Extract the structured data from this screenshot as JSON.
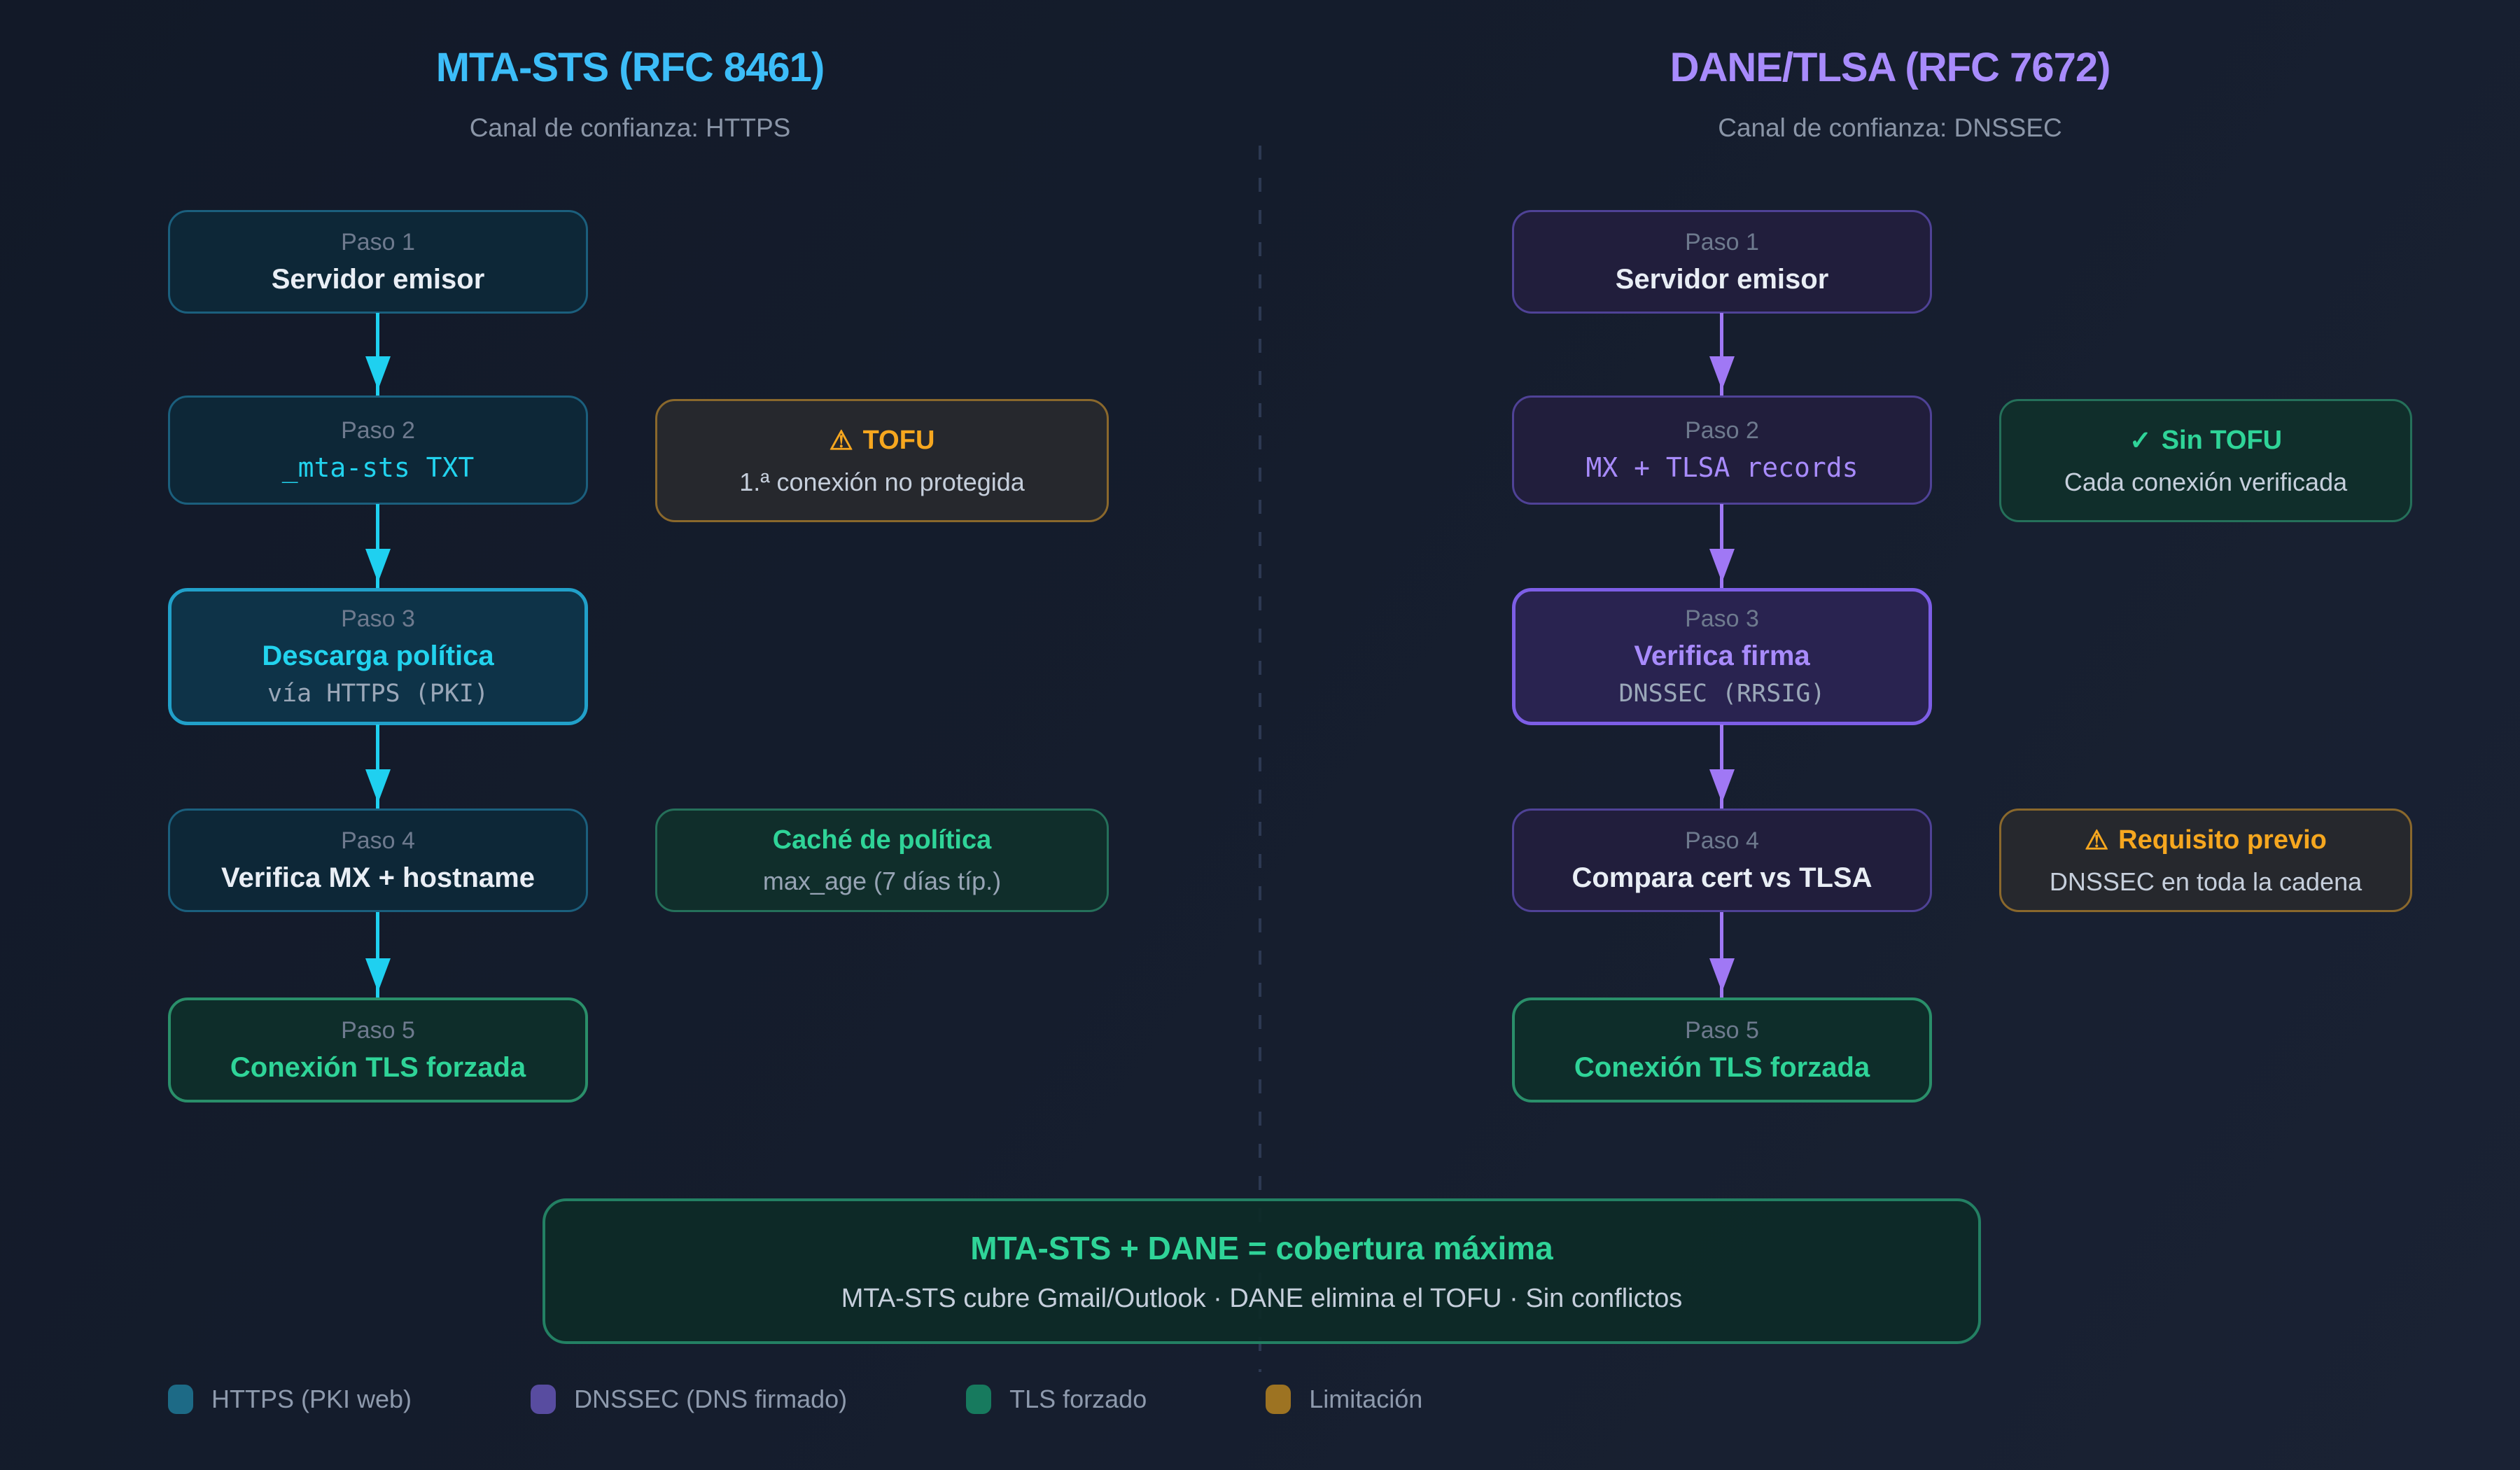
{
  "columns": {
    "left": {
      "title": "MTA-STS (RFC 8461)",
      "subtitle": "Canal de confianza: HTTPS",
      "steps": [
        {
          "label": "Paso 1",
          "main": "Servidor emisor"
        },
        {
          "label": "Paso 2",
          "main": "_mta-sts TXT"
        },
        {
          "label": "Paso 3",
          "main": "Descarga política",
          "sub": "vía HTTPS (PKI)"
        },
        {
          "label": "Paso 4",
          "main": "Verifica MX + hostname"
        },
        {
          "label": "Paso 5",
          "main": "Conexión TLS forzada"
        }
      ],
      "notes": [
        {
          "icon": "⚠",
          "title": "TOFU",
          "sub": "1.ª conexión no protegida"
        },
        {
          "title": "Caché de política",
          "sub": "max_age (7 días típ.)"
        }
      ]
    },
    "right": {
      "title": "DANE/TLSA (RFC 7672)",
      "subtitle": "Canal de confianza: DNSSEC",
      "steps": [
        {
          "label": "Paso 1",
          "main": "Servidor emisor"
        },
        {
          "label": "Paso 2",
          "main": "MX + TLSA records"
        },
        {
          "label": "Paso 3",
          "main": "Verifica firma",
          "sub": "DNSSEC (RRSIG)"
        },
        {
          "label": "Paso 4",
          "main": "Compara cert vs TLSA"
        },
        {
          "label": "Paso 5",
          "main": "Conexión TLS forzada"
        }
      ],
      "notes": [
        {
          "icon": "✓",
          "title": "Sin TOFU",
          "sub": "Cada conexión verificada"
        },
        {
          "icon": "⚠",
          "title": "Requisito previo",
          "sub": "DNSSEC en toda la cadena"
        }
      ]
    }
  },
  "summary": {
    "title": "MTA-STS + DANE = cobertura máxima",
    "subtitle": "MTA-STS cubre Gmail/Outlook · DANE elimina el TOFU · Sin conflictos"
  },
  "legend": [
    {
      "label": "HTTPS (PKI web)",
      "color": "#1d6a86"
    },
    {
      "label": "DNSSEC (DNS firmado)",
      "color": "#584ca0"
    },
    {
      "label": "TLS forzado",
      "color": "#177a5e"
    },
    {
      "label": "Limitación",
      "color": "#9d7322"
    }
  ],
  "colors": {
    "accent_cyan": "#22d3ee",
    "accent_blue": "#3cbdf8",
    "accent_purple": "#a88bfc",
    "accent_green": "#2fd498",
    "accent_amber": "#f6a71f"
  }
}
